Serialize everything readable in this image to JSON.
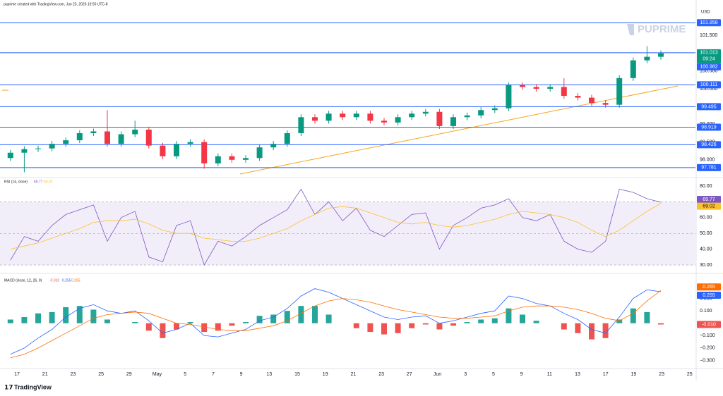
{
  "header": {
    "credit": "puprime created with TradingView.com, Jun 23, 2026 10:50 UTC-8",
    "currency": "USD",
    "logo": "PUPRIME",
    "footer": "TradingView"
  },
  "time_axis": {
    "labels": [
      "17",
      "21",
      "23",
      "25",
      "29",
      "May",
      "5",
      "7",
      "9",
      "13",
      "15",
      "19",
      "21",
      "23",
      "27",
      "Jun",
      "3",
      "5",
      "9",
      "11",
      "13",
      "17",
      "19",
      "23",
      "25"
    ]
  },
  "chart_data": [
    {
      "type": "candlestick",
      "open": [
        98.05,
        98.2,
        98.3,
        98.32,
        98.45,
        98.55,
        98.75,
        98.8,
        98.45,
        98.72,
        98.85,
        98.4,
        98.1,
        98.45,
        98.5,
        97.9,
        98.1,
        98.0,
        98.05,
        98.35,
        98.45,
        98.75,
        99.2,
        99.1,
        99.3,
        99.2,
        99.3,
        99.1,
        99.05,
        99.2,
        99.3,
        99.35,
        98.95,
        99.2,
        99.25,
        99.4,
        99.45,
        100.1,
        100.05,
        100.0,
        100.05,
        99.8,
        99.75,
        99.6,
        99.55,
        100.3,
        100.8,
        100.9
      ],
      "high": [
        98.28,
        98.38,
        98.4,
        98.53,
        98.63,
        98.83,
        98.88,
        99.4,
        98.8,
        99.1,
        98.93,
        98.48,
        98.53,
        98.58,
        98.58,
        98.18,
        98.18,
        98.13,
        98.43,
        98.53,
        98.83,
        99.28,
        99.28,
        99.38,
        99.38,
        99.38,
        99.38,
        99.18,
        99.28,
        99.38,
        99.43,
        99.43,
        99.28,
        99.33,
        99.48,
        99.53,
        100.18,
        100.18,
        100.13,
        100.13,
        100.3,
        99.88,
        99.83,
        99.68,
        100.38,
        100.88,
        101.2,
        101.08
      ],
      "low": [
        97.97,
        97.65,
        98.22,
        98.24,
        98.37,
        98.47,
        98.67,
        98.37,
        98.37,
        98.64,
        98.32,
        98.02,
        98.02,
        98.37,
        97.75,
        97.82,
        97.92,
        97.92,
        97.97,
        98.27,
        98.37,
        98.67,
        99.02,
        99.02,
        99.12,
        99.12,
        99.02,
        98.97,
        98.97,
        99.12,
        99.22,
        98.87,
        98.87,
        99.12,
        99.17,
        99.32,
        99.37,
        99.97,
        99.92,
        99.92,
        99.72,
        99.67,
        99.52,
        99.47,
        99.47,
        100.22,
        100.72,
        100.82
      ],
      "close": [
        98.2,
        98.3,
        98.32,
        98.45,
        98.55,
        98.75,
        98.8,
        98.45,
        98.72,
        98.85,
        98.4,
        98.1,
        98.45,
        98.5,
        97.9,
        98.1,
        98.0,
        98.05,
        98.35,
        98.45,
        98.75,
        99.2,
        99.1,
        99.3,
        99.2,
        99.3,
        99.1,
        99.05,
        99.2,
        99.3,
        99.35,
        98.95,
        99.2,
        99.25,
        99.4,
        99.45,
        100.1,
        100.05,
        100.0,
        100.05,
        99.8,
        99.75,
        99.6,
        99.55,
        100.3,
        100.8,
        100.9,
        101.0
      ],
      "up_color": "#089981",
      "down_color": "#f23645",
      "ylim": [
        97.54,
        102.3
      ],
      "yticks": [
        {
          "value": 98,
          "label": "98.000"
        },
        {
          "value": 98.5,
          "label": "98.500"
        },
        {
          "value": 99,
          "label": "99.000"
        },
        {
          "value": 99.5,
          "label": "99.500"
        },
        {
          "value": 100,
          "label": "100.000"
        },
        {
          "value": 100.5,
          "label": "100.500"
        },
        {
          "value": 101,
          "label": "101.000"
        },
        {
          "value": 101.5,
          "label": "101.500"
        }
      ],
      "levels": [
        101.858,
        100.111,
        99.495,
        98.919,
        98.426,
        97.781
      ],
      "level_color": "#2962ff",
      "last_price": 101.013,
      "last_color": "#089981",
      "countdown": "09:24",
      "prev_close": 100.982,
      "trendline_color": "#f7a21b"
    },
    {
      "type": "line",
      "title": "RSI (14, close)",
      "series": [
        {
          "color": "#7e57c2",
          "values": [
            33,
            48,
            45,
            55,
            62,
            65,
            68,
            45,
            60,
            64,
            35,
            32,
            55,
            58,
            30,
            45,
            42,
            48,
            55,
            60,
            65,
            78,
            62,
            70,
            58,
            66,
            52,
            48,
            55,
            62,
            63,
            40,
            55,
            60,
            66,
            68,
            72,
            60,
            58,
            62,
            45,
            40,
            38,
            45,
            78,
            76,
            72,
            69.77
          ]
        },
        {
          "color": "#fbc02d",
          "values": [
            40,
            42,
            44,
            47,
            50,
            53,
            57,
            58,
            58,
            59,
            56,
            52,
            50,
            50,
            47,
            46,
            45,
            45,
            47,
            50,
            53,
            58,
            62,
            66,
            67,
            66,
            63,
            60,
            57,
            56,
            57,
            55,
            54,
            55,
            57,
            59,
            62,
            64,
            63,
            62,
            60,
            57,
            52,
            48,
            52,
            58,
            64,
            69.02
          ]
        }
      ],
      "band": [
        30,
        70
      ],
      "midline": 50,
      "ylim": [
        26,
        82.7
      ],
      "yticks": [
        {
          "value": 30,
          "label": "30.00"
        },
        {
          "value": 40,
          "label": "40.00"
        },
        {
          "value": 50,
          "label": "50.00"
        },
        {
          "value": 60,
          "label": "60.00"
        },
        {
          "value": 70,
          "label": "70.00"
        },
        {
          "value": 80,
          "label": "80.00"
        }
      ]
    },
    {
      "type": "macd",
      "title": "MACD (close, 12, 26, 9)",
      "histogram": {
        "up_color": "#26a69a",
        "down_color": "#ef5350",
        "last_label": "-0.010",
        "values": [
          0.03,
          0.05,
          0.08,
          0.09,
          0.13,
          0.14,
          0.11,
          0.03,
          0,
          0.01,
          -0.06,
          -0.12,
          -0.05,
          0.01,
          -0.07,
          -0.06,
          -0.02,
          0.01,
          0.06,
          0.07,
          0.1,
          0.14,
          0.14,
          0.07,
          0,
          -0.04,
          -0.07,
          -0.09,
          -0.08,
          -0.04,
          -0.01,
          -0.05,
          -0.02,
          0.01,
          0.03,
          0.04,
          0.12,
          0.07,
          0.02,
          0,
          -0.05,
          -0.08,
          -0.13,
          -0.12,
          0.03,
          0.12,
          0.09,
          -0.01
        ]
      },
      "series": [
        {
          "color": "#2962ff",
          "values": [
            -0.25,
            -0.2,
            -0.12,
            -0.05,
            0.05,
            0.12,
            0.15,
            0.1,
            0.08,
            0.1,
            0.02,
            -0.08,
            -0.05,
            0.0,
            -0.1,
            -0.11,
            -0.08,
            -0.05,
            0.02,
            0.05,
            0.12,
            0.22,
            0.28,
            0.25,
            0.2,
            0.15,
            0.1,
            0.05,
            0.03,
            0.05,
            0.06,
            0.0,
            0.02,
            0.05,
            0.08,
            0.1,
            0.22,
            0.2,
            0.16,
            0.14,
            0.08,
            0.03,
            -0.05,
            -0.08,
            0.05,
            0.2,
            0.27,
            0.255
          ]
        },
        {
          "color": "#ff6d00",
          "values": [
            -0.28,
            -0.25,
            -0.2,
            -0.14,
            -0.08,
            -0.02,
            0.04,
            0.07,
            0.08,
            0.09,
            0.08,
            0.04,
            0.0,
            -0.01,
            -0.03,
            -0.05,
            -0.06,
            -0.06,
            -0.04,
            -0.02,
            0.02,
            0.08,
            0.14,
            0.18,
            0.2,
            0.19,
            0.17,
            0.14,
            0.11,
            0.09,
            0.07,
            0.05,
            0.04,
            0.04,
            0.05,
            0.06,
            0.1,
            0.13,
            0.14,
            0.14,
            0.13,
            0.11,
            0.08,
            0.04,
            0.02,
            0.08,
            0.18,
            0.265
          ]
        }
      ],
      "ylim": [
        -0.36,
        0.38
      ],
      "yticks": [
        {
          "value": -0.3,
          "label": "−0.300"
        },
        {
          "value": -0.2,
          "label": "−0.200"
        },
        {
          "value": -0.1,
          "label": "−0.100"
        },
        {
          "value": 0.1,
          "label": "0.100"
        },
        {
          "value": 0.2,
          "label": "0.200"
        }
      ]
    }
  ]
}
